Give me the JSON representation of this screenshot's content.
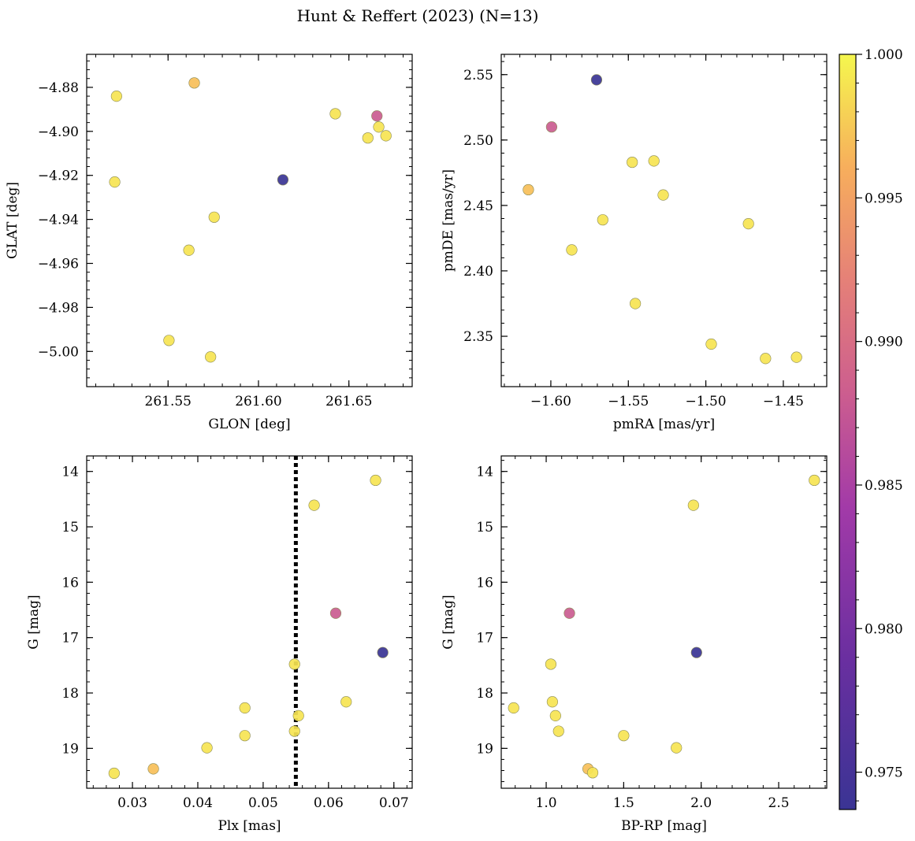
{
  "figure": {
    "title": "Hunt & Reffert (2023) (N=13)"
  },
  "colorbar": {
    "range": [
      0.9737,
      1.0
    ],
    "ticks": [
      "0.975",
      "0.980",
      "0.985",
      "0.990",
      "0.995",
      "1.000"
    ],
    "tick_values": [
      0.975,
      0.98,
      0.985,
      0.99,
      0.995,
      1.0
    ],
    "colormap": "plasma"
  },
  "chart_data": [
    {
      "type": "scatter",
      "xlabel": "GLON [deg]",
      "ylabel": "GLAT [deg]",
      "xlim": [
        261.505,
        261.685
      ],
      "ylim": [
        -5.016,
        -4.865
      ],
      "yinvert": false,
      "xticks": [
        261.55,
        261.6,
        261.65
      ],
      "xtick_labels": [
        "261.55",
        "261.60",
        "261.65"
      ],
      "yticks": [
        -4.88,
        -4.9,
        -4.92,
        -4.94,
        -4.96,
        -4.98,
        -5.0
      ],
      "ytick_labels": [
        "−4.88",
        "−4.90",
        "−4.92",
        "−4.94",
        "−4.96",
        "−4.98",
        "−5.00"
      ],
      "points": [
        {
          "x": 261.5215,
          "y": -4.884,
          "c": 0.999
        },
        {
          "x": 261.5645,
          "y": -4.878,
          "c": 0.997
        },
        {
          "x": 261.6425,
          "y": -4.892,
          "c": 0.999
        },
        {
          "x": 261.6655,
          "y": -4.893,
          "c": 0.988
        },
        {
          "x": 261.6665,
          "y": -4.898,
          "c": 0.999
        },
        {
          "x": 261.6605,
          "y": -4.903,
          "c": 0.999
        },
        {
          "x": 261.6705,
          "y": -4.902,
          "c": 0.999
        },
        {
          "x": 261.5205,
          "y": -4.923,
          "c": 0.999
        },
        {
          "x": 261.6135,
          "y": -4.922,
          "c": 0.9737
        },
        {
          "x": 261.5755,
          "y": -4.939,
          "c": 0.999
        },
        {
          "x": 261.5615,
          "y": -4.954,
          "c": 0.999
        },
        {
          "x": 261.5505,
          "y": -4.995,
          "c": 0.999
        },
        {
          "x": 261.5735,
          "y": -5.0025,
          "c": 0.999
        }
      ]
    },
    {
      "type": "scatter",
      "xlabel": "pmRA [mas/yr]",
      "ylabel": "pmDE [mas/yr]",
      "xlim": [
        -1.632,
        -1.422
      ],
      "ylim": [
        2.3115,
        2.5655
      ],
      "yinvert": false,
      "xticks": [
        -1.6,
        -1.55,
        -1.5,
        -1.45
      ],
      "xtick_labels": [
        "−1.60",
        "−1.55",
        "−1.50",
        "−1.45"
      ],
      "yticks": [
        2.35,
        2.4,
        2.45,
        2.5,
        2.55
      ],
      "ytick_labels": [
        "2.35",
        "2.40",
        "2.45",
        "2.50",
        "2.55"
      ],
      "points": [
        {
          "x": -1.5705,
          "y": 2.546,
          "c": 0.9737
        },
        {
          "x": -1.5995,
          "y": 2.51,
          "c": 0.988
        },
        {
          "x": -1.6145,
          "y": 2.462,
          "c": 0.997
        },
        {
          "x": -1.5475,
          "y": 2.483,
          "c": 0.999
        },
        {
          "x": -1.5335,
          "y": 2.484,
          "c": 0.999
        },
        {
          "x": -1.5275,
          "y": 2.458,
          "c": 0.999
        },
        {
          "x": -1.5665,
          "y": 2.439,
          "c": 0.999
        },
        {
          "x": -1.5865,
          "y": 2.416,
          "c": 0.999
        },
        {
          "x": -1.4725,
          "y": 2.436,
          "c": 0.999
        },
        {
          "x": -1.5455,
          "y": 2.375,
          "c": 0.999
        },
        {
          "x": -1.4965,
          "y": 2.344,
          "c": 0.999
        },
        {
          "x": -1.4615,
          "y": 2.333,
          "c": 0.999
        },
        {
          "x": -1.4415,
          "y": 2.334,
          "c": 0.999
        }
      ]
    },
    {
      "type": "scatter",
      "xlabel": "Plx [mas]",
      "ylabel": "G [mag]",
      "xlim": [
        0.023,
        0.0728
      ],
      "ylim": [
        13.72,
        19.72
      ],
      "yinvert": true,
      "vline": 0.055,
      "xticks": [
        0.03,
        0.04,
        0.05,
        0.06,
        0.07
      ],
      "xtick_labels": [
        "0.03",
        "0.04",
        "0.05",
        "0.06",
        "0.07"
      ],
      "yticks": [
        14,
        15,
        16,
        17,
        18,
        19
      ],
      "ytick_labels": [
        "14",
        "15",
        "16",
        "17",
        "18",
        "19"
      ],
      "points": [
        {
          "x": 0.0672,
          "y": 14.16,
          "c": 0.999
        },
        {
          "x": 0.0578,
          "y": 14.61,
          "c": 0.999
        },
        {
          "x": 0.0611,
          "y": 16.56,
          "c": 0.988
        },
        {
          "x": 0.0683,
          "y": 17.27,
          "c": 0.9737
        },
        {
          "x": 0.0548,
          "y": 17.48,
          "c": 0.999
        },
        {
          "x": 0.0627,
          "y": 18.16,
          "c": 0.999
        },
        {
          "x": 0.0472,
          "y": 18.27,
          "c": 0.999
        },
        {
          "x": 0.0554,
          "y": 18.41,
          "c": 0.999
        },
        {
          "x": 0.0548,
          "y": 18.69,
          "c": 0.999
        },
        {
          "x": 0.0472,
          "y": 18.77,
          "c": 0.999
        },
        {
          "x": 0.0414,
          "y": 18.99,
          "c": 0.999
        },
        {
          "x": 0.0332,
          "y": 19.37,
          "c": 0.997
        },
        {
          "x": 0.0272,
          "y": 19.45,
          "c": 0.999
        }
      ]
    },
    {
      "type": "scatter",
      "xlabel": "BP-RP [mag]",
      "ylabel": "G [mag]",
      "xlim": [
        0.71,
        2.81
      ],
      "ylim": [
        13.72,
        19.72
      ],
      "yinvert": true,
      "xticks": [
        1.0,
        1.5,
        2.0,
        2.5
      ],
      "xtick_labels": [
        "1.0",
        "1.5",
        "2.0",
        "2.5"
      ],
      "yticks": [
        14,
        15,
        16,
        17,
        18,
        19
      ],
      "ytick_labels": [
        "14",
        "15",
        "16",
        "17",
        "18",
        "19"
      ],
      "points": [
        {
          "x": 2.73,
          "y": 14.16,
          "c": 0.999
        },
        {
          "x": 1.95,
          "y": 14.61,
          "c": 0.999
        },
        {
          "x": 1.15,
          "y": 16.56,
          "c": 0.988
        },
        {
          "x": 1.97,
          "y": 17.27,
          "c": 0.9737
        },
        {
          "x": 1.03,
          "y": 17.48,
          "c": 0.999
        },
        {
          "x": 1.04,
          "y": 18.16,
          "c": 0.999
        },
        {
          "x": 0.79,
          "y": 18.27,
          "c": 0.999
        },
        {
          "x": 1.06,
          "y": 18.41,
          "c": 0.999
        },
        {
          "x": 1.08,
          "y": 18.69,
          "c": 0.999
        },
        {
          "x": 1.5,
          "y": 18.77,
          "c": 0.999
        },
        {
          "x": 1.84,
          "y": 18.99,
          "c": 0.999
        },
        {
          "x": 1.27,
          "y": 19.37,
          "c": 0.997
        },
        {
          "x": 1.3,
          "y": 19.44,
          "c": 0.999
        }
      ]
    }
  ]
}
